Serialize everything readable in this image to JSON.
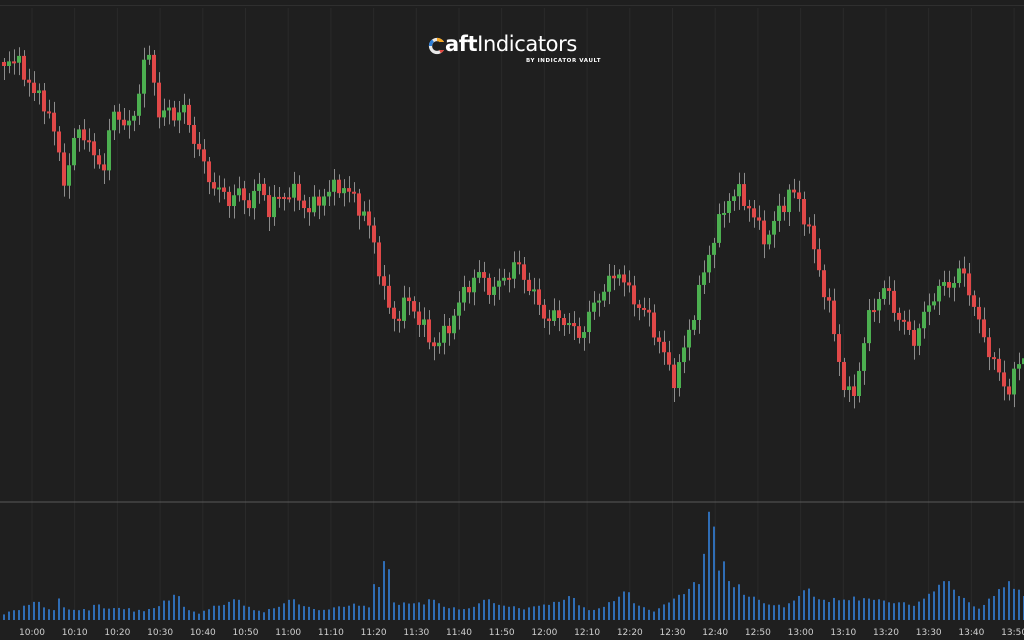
{
  "logo": {
    "brand_bold": "aft",
    "brand_rest": "Indicators",
    "brand_prefix": "Cr",
    "subtitle": "BY INDICATOR VAULT",
    "mark_icon": "craft-ring-icon"
  },
  "colors": {
    "background": "#1f1f1f",
    "up_candle": "#4caf50",
    "down_candle": "#e04848",
    "wick": "#8c8c8c",
    "volume": "#2f6db5",
    "separator": "#5a5a5a",
    "grid": "#2a2a2a"
  },
  "chart_data": {
    "type": "candlestick",
    "x_tick_labels": [
      "10:00",
      "10:10",
      "10:20",
      "10:30",
      "10:40",
      "10:50",
      "11:00",
      "11:10",
      "11:20",
      "11:30",
      "11:40",
      "11:50",
      "12:00",
      "12:10",
      "12:20",
      "12:30",
      "12:40",
      "12:50",
      "13:00",
      "13:10",
      "13:20",
      "13:30",
      "13:40",
      "13:50"
    ],
    "close_path": [
      62,
      58,
      66,
      78,
      96,
      100,
      118,
      155,
      185,
      140,
      125,
      150,
      162,
      165,
      110,
      118,
      130,
      105,
      60,
      62,
      120,
      110,
      115,
      108,
      130,
      150,
      175,
      185,
      195,
      200,
      190,
      205,
      195,
      185,
      210,
      200,
      195,
      190,
      200,
      210,
      205,
      195,
      190,
      185,
      190,
      200,
      210,
      230,
      260,
      300,
      320,
      310,
      300,
      315,
      330,
      345,
      340,
      330,
      310,
      295,
      280,
      275,
      285,
      290,
      280,
      270,
      265,
      280,
      295,
      310,
      320,
      315,
      320,
      330,
      335,
      320,
      300,
      290,
      280,
      270,
      290,
      300,
      310,
      320,
      340,
      360,
      380,
      360,
      330,
      300,
      270,
      240,
      220,
      200,
      190,
      200,
      210,
      230,
      240,
      220,
      205,
      190,
      200,
      220,
      250,
      280,
      310,
      350,
      390,
      400,
      360,
      320,
      300,
      290,
      300,
      320,
      330,
      340,
      320,
      300,
      290,
      285,
      280,
      270,
      290,
      320,
      340,
      360,
      380,
      390,
      370,
      355
    ],
    "volume_path": [
      8,
      10,
      9,
      12,
      14,
      10,
      9,
      22,
      15,
      12,
      10,
      8,
      12,
      9,
      10,
      11,
      14,
      12,
      9,
      10,
      11,
      15,
      20,
      12,
      10,
      9,
      11,
      13,
      12,
      14,
      16,
      12,
      10,
      11,
      13,
      12,
      14,
      16,
      12,
      11,
      10,
      12,
      15,
      14,
      12,
      13,
      11,
      10,
      30,
      60,
      25,
      18,
      15,
      14,
      12,
      16,
      14,
      12,
      15,
      13,
      12,
      14,
      16,
      13,
      12,
      12,
      14,
      15,
      14,
      13,
      12,
      14,
      16,
      20,
      15,
      14,
      12,
      12,
      15,
      18,
      22,
      14,
      13,
      12,
      14,
      16,
      18,
      20,
      24,
      30,
      60,
      110,
      70,
      40,
      30,
      20,
      18,
      16,
      14,
      15,
      18,
      20,
      22,
      25,
      18,
      16,
      15,
      20,
      24,
      28,
      20,
      18,
      16,
      15,
      14,
      16,
      18,
      20,
      22,
      24,
      28,
      30,
      24,
      20,
      18,
      16,
      18,
      22,
      26,
      30,
      24,
      20
    ],
    "ylabel": "",
    "xlabel": ""
  }
}
